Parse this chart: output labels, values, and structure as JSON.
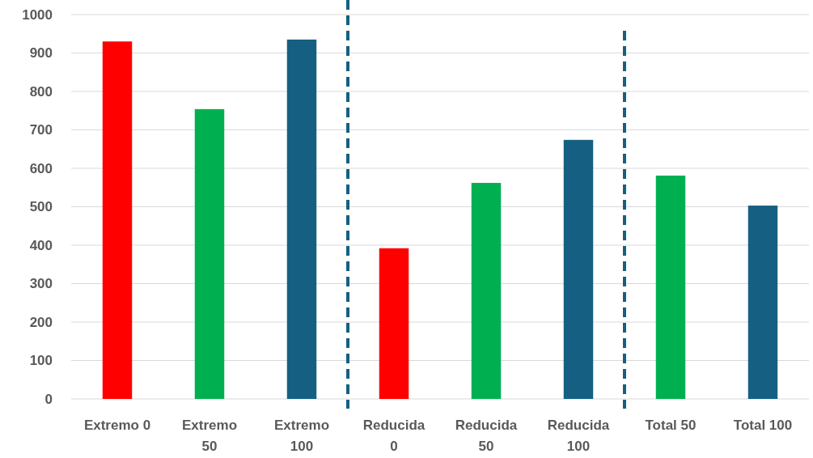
{
  "chart_data": {
    "type": "bar",
    "categories": [
      "Extremo 0",
      "Extremo 50",
      "Extremo 100",
      "Reducida 0",
      "Reducida 50",
      "Reducida 100",
      "Total 50",
      "Total 100"
    ],
    "values": [
      930,
      754,
      935,
      392,
      562,
      674,
      581,
      503
    ],
    "colors": [
      "#ff0000",
      "#00b050",
      "#156082",
      "#ff0000",
      "#00b050",
      "#156082",
      "#00b050",
      "#156082"
    ],
    "ylim": [
      0,
      1000
    ],
    "yticks": [
      0,
      100,
      200,
      300,
      400,
      500,
      600,
      700,
      800,
      900,
      1000
    ],
    "grid": "y"
  }
}
